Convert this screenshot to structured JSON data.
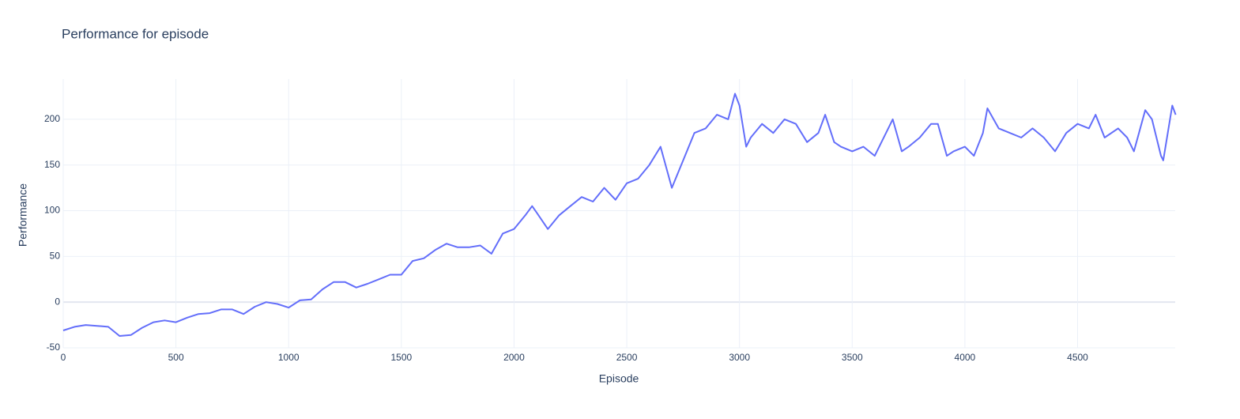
{
  "chart_data": {
    "type": "line",
    "title": "Performance for episode",
    "x_label": "Episode",
    "y_label": "Performance",
    "color": "#636efa",
    "grid": true,
    "x": [
      0,
      50,
      100,
      150,
      200,
      250,
      300,
      350,
      400,
      450,
      500,
      550,
      600,
      650,
      700,
      750,
      800,
      850,
      900,
      950,
      1000,
      1050,
      1100,
      1150,
      1200,
      1250,
      1300,
      1350,
      1400,
      1450,
      1500,
      1550,
      1600,
      1650,
      1700,
      1750,
      1800,
      1850,
      1900,
      1950,
      2000,
      2050,
      2080,
      2100,
      2150,
      2200,
      2250,
      2300,
      2350,
      2400,
      2450,
      2500,
      2550,
      2600,
      2650,
      2700,
      2750,
      2800,
      2850,
      2900,
      2950,
      2980,
      3000,
      3030,
      3050,
      3100,
      3150,
      3200,
      3250,
      3300,
      3350,
      3380,
      3420,
      3450,
      3500,
      3550,
      3600,
      3650,
      3680,
      3720,
      3750,
      3800,
      3850,
      3880,
      3920,
      3950,
      4000,
      4040,
      4080,
      4100,
      4150,
      4200,
      4250,
      4300,
      4350,
      4400,
      4450,
      4500,
      4550,
      4580,
      4620,
      4680,
      4720,
      4750,
      4800,
      4830,
      4870,
      4880,
      4900,
      4920,
      4935
    ],
    "values": [
      -31,
      -27,
      -25,
      -26,
      -27,
      -37,
      -36,
      -28,
      -22,
      -20,
      -22,
      -17,
      -13,
      -12,
      -8,
      -8,
      -13,
      -5,
      0,
      -2,
      -6,
      2,
      3,
      14,
      22,
      22,
      16,
      20,
      25,
      30,
      30,
      45,
      48,
      57,
      64,
      60,
      60,
      62,
      53,
      75,
      80,
      95,
      105,
      98,
      80,
      95,
      105,
      115,
      110,
      125,
      112,
      130,
      135,
      150,
      170,
      125,
      155,
      185,
      190,
      205,
      200,
      228,
      215,
      170,
      180,
      195,
      185,
      200,
      195,
      175,
      185,
      205,
      175,
      170,
      165,
      170,
      160,
      185,
      200,
      165,
      170,
      180,
      195,
      195,
      160,
      165,
      170,
      160,
      185,
      212,
      190,
      185,
      180,
      190,
      180,
      165,
      185,
      195,
      190,
      205,
      180,
      190,
      180,
      165,
      210,
      200,
      160,
      155,
      185,
      215,
      205
    ],
    "xlim": [
      0,
      4933
    ],
    "ylim": [
      -50,
      244
    ],
    "xticks": [
      0,
      500,
      1000,
      1500,
      2000,
      2500,
      3000,
      3500,
      4000,
      4500
    ],
    "yticks": [
      -50,
      0,
      50,
      100,
      150,
      200
    ]
  }
}
